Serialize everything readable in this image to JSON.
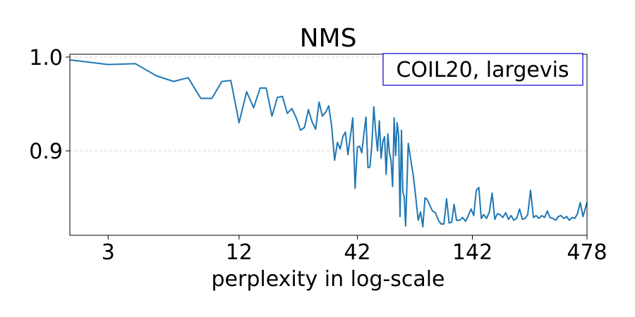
{
  "chart_data": {
    "type": "line",
    "title": "NMS",
    "xlabel": "perplexity in log-scale",
    "ylabel": "",
    "xscale": "log",
    "xlim": [
      2,
      478
    ],
    "ylim": [
      0.81,
      1.003
    ],
    "xticks": [
      3,
      12,
      42,
      142,
      478
    ],
    "yticks": [
      0.9,
      1.0
    ],
    "ytick_labels": [
      "0.9",
      "1.0"
    ],
    "grid": "horizontal dashed",
    "annotation": "COIL20, largevis",
    "annotation_position": "top-right",
    "colors": {
      "line": "#1f77b4",
      "annotation_border": "#0000cc",
      "grid": "#d3d3d3"
    },
    "series": [
      {
        "name": "NMS",
        "x": [
          2,
          3,
          4,
          5,
          6,
          7,
          8,
          9,
          10,
          11,
          12,
          13,
          14,
          15,
          16,
          17,
          18,
          19,
          20,
          21,
          22,
          23,
          24,
          25,
          26,
          27,
          28,
          29,
          30,
          31,
          32,
          33,
          34,
          35,
          36,
          37,
          38,
          39,
          40,
          41,
          42,
          43,
          44,
          45,
          46,
          47,
          48,
          49,
          50,
          51,
          52,
          53,
          54,
          55,
          56,
          57,
          58,
          59,
          60,
          61,
          62,
          63,
          64,
          65,
          66,
          67,
          68,
          69,
          70,
          72,
          74,
          76,
          78,
          80,
          82,
          84,
          86,
          88,
          90,
          93,
          96,
          99,
          102,
          105,
          108,
          111,
          114,
          117,
          120,
          124,
          128,
          132,
          136,
          140,
          144,
          148,
          152,
          156,
          160,
          165,
          170,
          175,
          180,
          185,
          190,
          196,
          202,
          208,
          214,
          220,
          227,
          234,
          241,
          248,
          255,
          263,
          271,
          279,
          287,
          296,
          305,
          314,
          323,
          333,
          343,
          353,
          363,
          374,
          385,
          396,
          408,
          420,
          432,
          445,
          458,
          478
        ],
        "values": [
          0.997,
          0.992,
          0.993,
          0.98,
          0.974,
          0.978,
          0.956,
          0.956,
          0.974,
          0.975,
          0.93,
          0.963,
          0.946,
          0.967,
          0.967,
          0.937,
          0.957,
          0.958,
          0.94,
          0.945,
          0.935,
          0.922,
          0.925,
          0.944,
          0.931,
          0.923,
          0.952,
          0.937,
          0.941,
          0.948,
          0.926,
          0.89,
          0.909,
          0.902,
          0.915,
          0.92,
          0.896,
          0.915,
          0.935,
          0.86,
          0.904,
          0.905,
          0.898,
          0.918,
          0.936,
          0.882,
          0.883,
          0.908,
          0.947,
          0.92,
          0.9,
          0.932,
          0.892,
          0.91,
          0.915,
          0.875,
          0.918,
          0.898,
          0.89,
          0.862,
          0.935,
          0.895,
          0.93,
          0.917,
          0.83,
          0.922,
          0.856,
          0.851,
          0.82,
          0.908,
          0.89,
          0.873,
          0.85,
          0.826,
          0.835,
          0.819,
          0.85,
          0.848,
          0.843,
          0.836,
          0.834,
          0.826,
          0.822,
          0.822,
          0.849,
          0.823,
          0.824,
          0.843,
          0.826,
          0.826,
          0.829,
          0.825,
          0.831,
          0.838,
          0.831,
          0.858,
          0.861,
          0.828,
          0.832,
          0.828,
          0.835,
          0.855,
          0.827,
          0.833,
          0.832,
          0.829,
          0.834,
          0.827,
          0.831,
          0.826,
          0.828,
          0.838,
          0.827,
          0.828,
          0.832,
          0.858,
          0.829,
          0.831,
          0.828,
          0.831,
          0.829,
          0.836,
          0.829,
          0.828,
          0.826,
          0.83,
          0.831,
          0.828,
          0.83,
          0.826,
          0.829,
          0.828,
          0.833,
          0.845,
          0.83,
          0.845
        ]
      }
    ]
  }
}
